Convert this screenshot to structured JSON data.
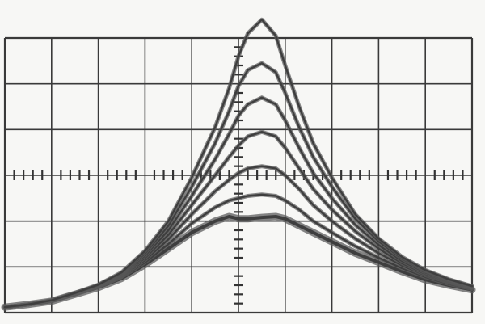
{
  "chart_data": {
    "type": "line",
    "title": "",
    "xlabel": "",
    "ylabel": "",
    "grid": true,
    "x_divisions": 10,
    "y_divisions": 6,
    "xlim": [
      0,
      10
    ],
    "ylim": [
      0,
      6
    ],
    "x": [
      0.0,
      0.5,
      1.0,
      1.5,
      2.0,
      2.5,
      3.0,
      3.5,
      4.0,
      4.5,
      4.8,
      5.0,
      5.2,
      5.5,
      5.8,
      6.0,
      6.3,
      6.6,
      7.0,
      7.5,
      8.0,
      8.5,
      9.0,
      9.5,
      10.0
    ],
    "series": [
      {
        "values": [
          0.12,
          0.18,
          0.25,
          0.4,
          0.55,
          0.75,
          1.05,
          1.4,
          1.75,
          2.0,
          2.1,
          2.05,
          2.05,
          2.08,
          2.1,
          2.05,
          1.9,
          1.75,
          1.55,
          1.3,
          1.1,
          0.9,
          0.72,
          0.6,
          0.5
        ]
      },
      {
        "values": [
          0.12,
          0.18,
          0.25,
          0.4,
          0.56,
          0.78,
          1.1,
          1.5,
          1.95,
          2.3,
          2.45,
          2.5,
          2.55,
          2.58,
          2.55,
          2.45,
          2.25,
          2.0,
          1.75,
          1.45,
          1.2,
          0.97,
          0.78,
          0.63,
          0.52
        ]
      },
      {
        "values": [
          0.12,
          0.18,
          0.26,
          0.41,
          0.57,
          0.8,
          1.15,
          1.6,
          2.15,
          2.65,
          2.9,
          3.05,
          3.15,
          3.2,
          3.15,
          3.0,
          2.7,
          2.35,
          2.0,
          1.62,
          1.3,
          1.03,
          0.82,
          0.66,
          0.54
        ]
      },
      {
        "values": [
          0.12,
          0.18,
          0.26,
          0.41,
          0.58,
          0.82,
          1.2,
          1.7,
          2.35,
          3.0,
          3.4,
          3.65,
          3.85,
          3.95,
          3.85,
          3.6,
          3.15,
          2.7,
          2.25,
          1.78,
          1.4,
          1.08,
          0.85,
          0.68,
          0.55
        ]
      },
      {
        "values": [
          0.12,
          0.18,
          0.26,
          0.42,
          0.59,
          0.84,
          1.25,
          1.8,
          2.55,
          3.35,
          3.9,
          4.3,
          4.55,
          4.7,
          4.55,
          4.2,
          3.6,
          3.05,
          2.5,
          1.92,
          1.48,
          1.13,
          0.88,
          0.7,
          0.56
        ]
      },
      {
        "values": [
          0.12,
          0.18,
          0.27,
          0.42,
          0.6,
          0.86,
          1.3,
          1.9,
          2.75,
          3.7,
          4.4,
          4.95,
          5.3,
          5.45,
          5.25,
          4.8,
          4.05,
          3.4,
          2.75,
          2.05,
          1.56,
          1.18,
          0.91,
          0.72,
          0.57
        ]
      },
      {
        "values": [
          0.12,
          0.18,
          0.27,
          0.43,
          0.61,
          0.88,
          1.35,
          2.0,
          2.95,
          4.05,
          4.9,
          5.6,
          6.1,
          6.4,
          6.05,
          5.4,
          4.5,
          3.7,
          2.95,
          2.15,
          1.62,
          1.22,
          0.93,
          0.73,
          0.58
        ]
      }
    ]
  }
}
